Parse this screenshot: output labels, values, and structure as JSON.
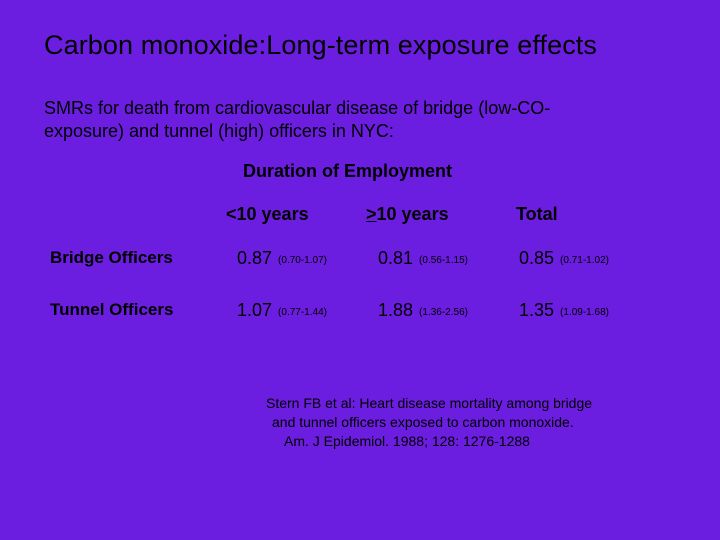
{
  "slide": {
    "title": "Carbon monoxide:Long-term exposure effects",
    "intro_line1": "SMRs for death from cardiovascular disease of bridge (low-CO-",
    "intro_line2": "exposure) and tunnel (high) officers in NYC:",
    "table_heading": "Duration of Employment",
    "columns": {
      "col1": "<10 years",
      "col2_prefix": ">",
      "col2_rest": "10 years",
      "col3": "Total"
    },
    "rows": [
      {
        "label": "Bridge Officers",
        "cells": [
          {
            "value": "0.87",
            "ci": "(0.70-1.07)"
          },
          {
            "value": "0.81",
            "ci": "(0.56-1.15)"
          },
          {
            "value": "0.85",
            "ci": "(0.71-1.02)"
          }
        ]
      },
      {
        "label": "Tunnel Officers",
        "cells": [
          {
            "value": "1.07",
            "ci": "(0.77-1.44)"
          },
          {
            "value": "1.88",
            "ci": "(1.36-2.56)"
          },
          {
            "value": "1.35",
            "ci": "(1.09-1.68)"
          }
        ]
      }
    ],
    "reference": {
      "line1": "Stern FB et al:  Heart disease mortality among bridge",
      "line2": "and tunnel officers exposed to carbon monoxide.",
      "line3": "Am. J Epidemiol.  1988;  128: 1276-1288"
    }
  },
  "colors": {
    "background": "#6b1ee0",
    "text": "#000000"
  }
}
